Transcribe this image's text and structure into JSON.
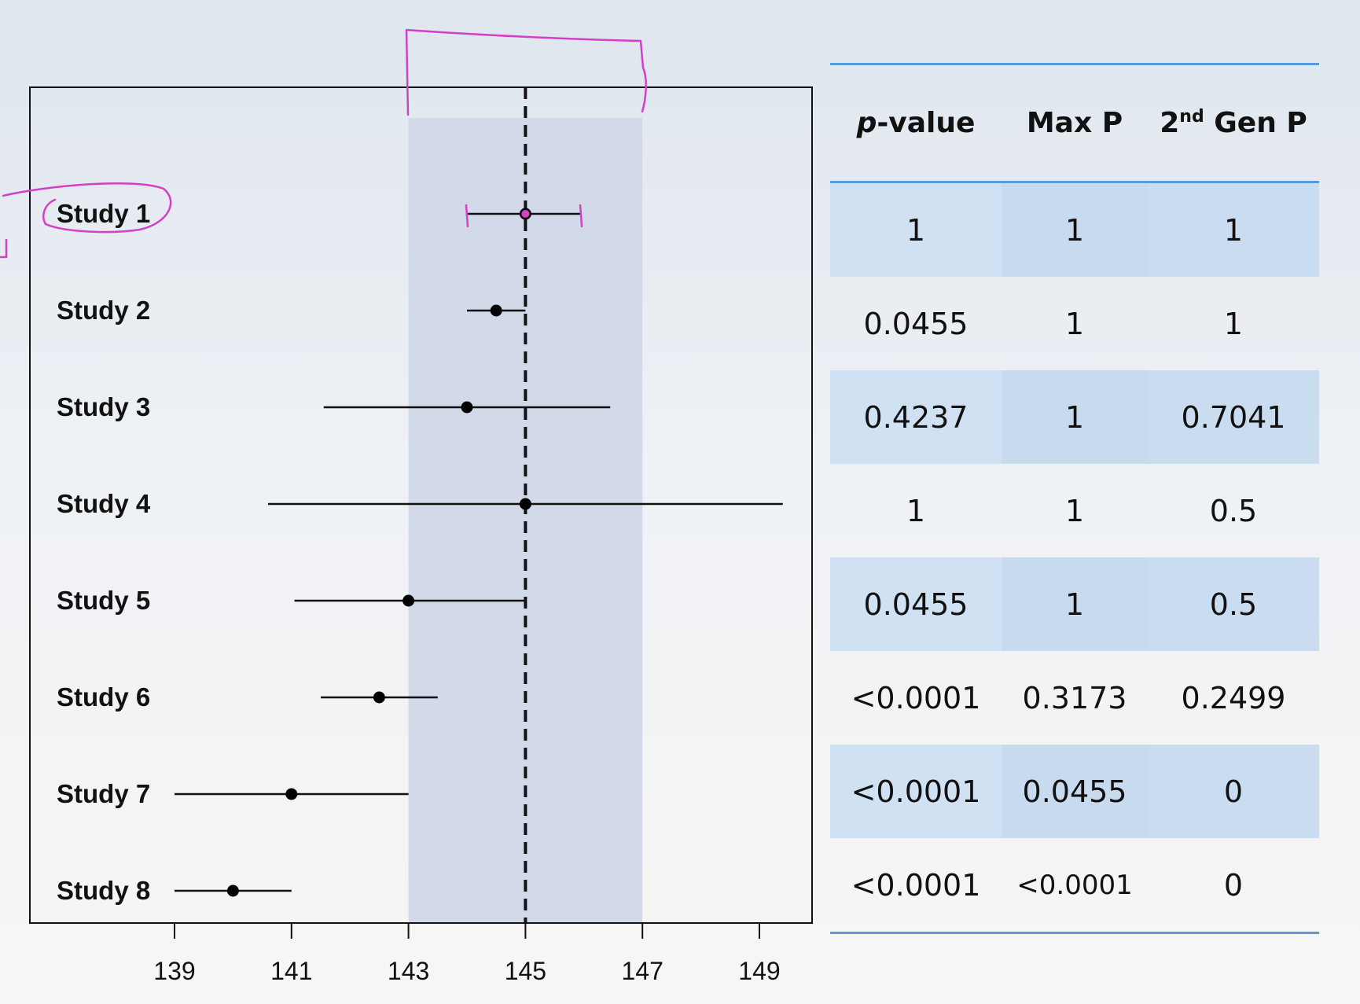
{
  "chart_data": {
    "type": "forest",
    "xlim": [
      136.5,
      150.2
    ],
    "x_ticks": [
      139,
      141,
      143,
      145,
      147,
      149
    ],
    "reference_line": 145,
    "shaded_interval": [
      143,
      147
    ],
    "studies": [
      {
        "label": "Study 1",
        "estimate": 145.0,
        "lower": 144.0,
        "upper": 145.95
      },
      {
        "label": "Study 2",
        "estimate": 144.5,
        "lower": 144.0,
        "upper": 145.0
      },
      {
        "label": "Study 3",
        "estimate": 144.0,
        "lower": 141.55,
        "upper": 146.45
      },
      {
        "label": "Study 4",
        "estimate": 145.0,
        "lower": 140.6,
        "upper": 149.4
      },
      {
        "label": "Study 5",
        "estimate": 143.0,
        "lower": 141.05,
        "upper": 145.0
      },
      {
        "label": "Study 6",
        "estimate": 142.5,
        "lower": 141.5,
        "upper": 143.5
      },
      {
        "label": "Study 7",
        "estimate": 141.0,
        "lower": 139.0,
        "upper": 143.0
      },
      {
        "label": "Study 8",
        "estimate": 140.0,
        "lower": 139.0,
        "upper": 141.0
      }
    ]
  },
  "table": {
    "headers": {
      "pvalue_italic": "p",
      "pvalue_rest": "-value",
      "maxp": "Max P",
      "gen_prefix": "2",
      "gen_sup": "nd",
      "gen_suffix": " Gen P"
    },
    "rows": [
      {
        "pvalue": "1",
        "maxp": "1",
        "genp": "1"
      },
      {
        "pvalue": "0.0455",
        "maxp": "1",
        "genp": "1"
      },
      {
        "pvalue": "0.4237",
        "maxp": "1",
        "genp": "0.7041"
      },
      {
        "pvalue": "1",
        "maxp": "1",
        "genp": "0.5"
      },
      {
        "pvalue": "0.0455",
        "maxp": "1",
        "genp": "0.5"
      },
      {
        "pvalue": "<0.0001",
        "maxp": "0.3173",
        "genp": "0.2499"
      },
      {
        "pvalue": "<0.0001",
        "maxp": "0.0455",
        "genp": "0"
      },
      {
        "pvalue": "<0.0001",
        "maxp": "<0.0001",
        "genp": "0"
      }
    ]
  },
  "colors": {
    "shade": "#d2d9e8",
    "ink": "#000000",
    "annotation": "#d040c8",
    "table_rule": "#5b9bd5",
    "table_band": "#cfe1f2"
  }
}
